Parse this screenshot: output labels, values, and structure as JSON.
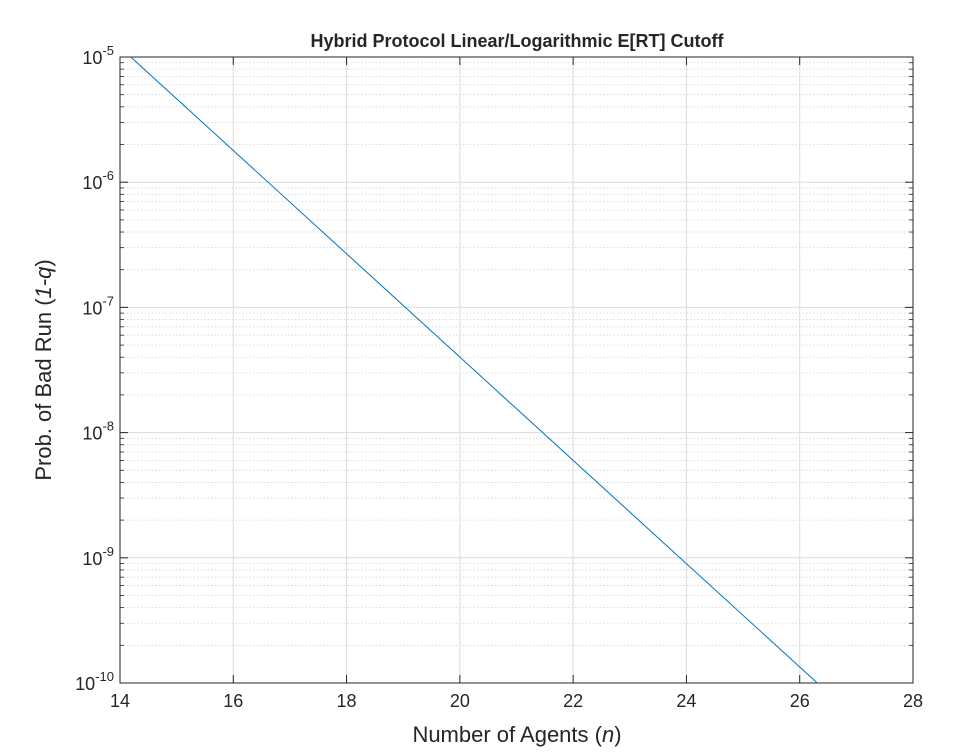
{
  "chart_data": {
    "type": "line",
    "title": "Hybrid Protocol Linear/Logarithmic E[RT] Cutoff",
    "xlabel_parts": [
      "Number of Agents (",
      "n",
      ")"
    ],
    "ylabel_parts": [
      "Prob. of Bad Run (",
      "1-q",
      ")"
    ],
    "x": [
      14.19,
      26.31
    ],
    "series": [
      {
        "color": "#0072bd",
        "values": [
          1e-05,
          1e-10
        ]
      }
    ],
    "xlim": [
      14,
      28
    ],
    "xticks": [
      14,
      16,
      18,
      20,
      22,
      24,
      26,
      28
    ],
    "ylim": [
      1e-10,
      1e-05
    ],
    "yticks": [
      {
        "value": 1e-10,
        "label": "10",
        "exponent": "-10"
      },
      {
        "value": 1e-09,
        "label": "10",
        "exponent": "-9"
      },
      {
        "value": 1e-08,
        "label": "10",
        "exponent": "-8"
      },
      {
        "value": 1e-07,
        "label": "10",
        "exponent": "-7"
      },
      {
        "value": 1e-06,
        "label": "10",
        "exponent": "-6"
      },
      {
        "value": 1e-05,
        "label": "10",
        "exponent": "-5"
      }
    ],
    "yscale": "log",
    "grid": true,
    "minor_grid": true
  }
}
